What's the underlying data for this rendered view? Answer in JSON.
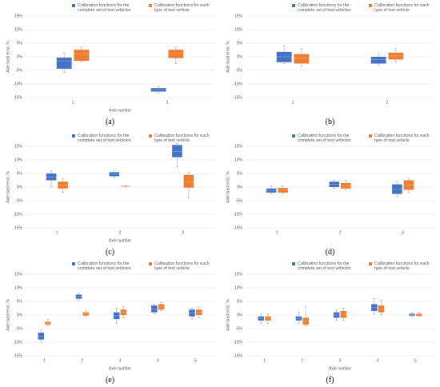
{
  "chart_data": [
    {
      "type": "box",
      "label": "(a)",
      "ylabel": "Axle load error, %",
      "xlabel": "Axle number",
      "categories": [
        "1",
        "2"
      ],
      "ylim": [
        -15,
        15
      ],
      "yticks": [
        {
          "value": -15,
          "label": "-15%"
        },
        {
          "value": -10,
          "label": "-10%"
        },
        {
          "value": -5,
          "label": "-5%"
        },
        {
          "value": 0,
          "label": "0%"
        },
        {
          "value": 5,
          "label": "5%"
        },
        {
          "value": 10,
          "label": "10%"
        },
        {
          "value": 15,
          "label": "15%"
        }
      ],
      "grid": true,
      "series": [
        {
          "name": "Calibration functions for the complete set of test vehicles",
          "color": "#4472c4",
          "min": [
            -5.8,
            -13.3
          ],
          "q1": [
            -4.4,
            -12.8
          ],
          "median": [
            -1.5,
            -12
          ],
          "q3": [
            -0.3,
            -11.5
          ],
          "max": [
            1.5,
            -11
          ]
        },
        {
          "name": "Calibration functions for each type of test vehicle",
          "color": "#ed7d31",
          "min": [
            -2,
            -2.5
          ],
          "q1": [
            -1.5,
            -0.5
          ],
          "median": [
            1,
            1
          ],
          "q3": [
            2.6,
            2.6
          ],
          "max": [
            3.5,
            3.5
          ]
        }
      ]
    },
    {
      "type": "box",
      "label": "(b)",
      "ylabel": "Axle load error, %",
      "categories": [
        "1",
        "2"
      ],
      "ylim": [
        -15,
        15
      ],
      "yticks": [
        {
          "value": -15,
          "label": "-15%"
        },
        {
          "value": -10,
          "label": "-10%"
        },
        {
          "value": -5,
          "label": "-5%"
        },
        {
          "value": 0,
          "label": "0%"
        },
        {
          "value": 5,
          "label": "5%"
        },
        {
          "value": 10,
          "label": "10%"
        },
        {
          "value": 15,
          "label": "15%"
        }
      ],
      "grid": true,
      "series": [
        {
          "name": "Calibration functions for the complete set of test vehicles",
          "color": "#4472c4",
          "min": [
            -2.5,
            -3
          ],
          "q1": [
            -2,
            -2.5
          ],
          "median": [
            0,
            -1
          ],
          "q3": [
            1.8,
            0
          ],
          "max": [
            4,
            1
          ]
        },
        {
          "name": "Calibration functions for each type of test vehicle",
          "color": "#ed7d31",
          "min": [
            -3.5,
            -2
          ],
          "q1": [
            -2.5,
            -1
          ],
          "median": [
            -0.5,
            0.3
          ],
          "q3": [
            1,
            1.5
          ],
          "max": [
            3,
            3
          ]
        }
      ]
    },
    {
      "type": "box",
      "label": "(c)",
      "ylabel": "Axle load error, %",
      "xlabel": "Axle number",
      "categories": [
        "1",
        "2",
        "3"
      ],
      "ylim": [
        -15,
        15
      ],
      "yticks": [
        {
          "value": -15,
          "label": "-15%"
        },
        {
          "value": -10,
          "label": "-10%"
        },
        {
          "value": -5,
          "label": "-5%"
        },
        {
          "value": 0,
          "label": "0%"
        },
        {
          "value": 5,
          "label": "5%"
        },
        {
          "value": 10,
          "label": "10%"
        },
        {
          "value": 15,
          "label": "15%"
        }
      ],
      "grid": true,
      "series": [
        {
          "name": "Calibration functions for the complete set of test vehicles",
          "color": "#4472c4",
          "min": [
            0,
            3.5,
            7.5
          ],
          "q1": [
            2.5,
            4,
            11
          ],
          "median": [
            3.8,
            4.8,
            13
          ],
          "q3": [
            5,
            5.5,
            15.5
          ],
          "max": [
            6,
            6,
            16
          ]
        },
        {
          "name": "Calibration functions for each type of test vehicle",
          "color": "#ed7d31",
          "min": [
            -2,
            0,
            -4
          ],
          "q1": [
            -0.5,
            0.2,
            -0.2
          ],
          "median": [
            0.8,
            0.3,
            2
          ],
          "q3": [
            2,
            0.5,
            4.5
          ],
          "max": [
            3,
            0.5,
            5.5
          ]
        }
      ]
    },
    {
      "type": "box",
      "label": "(d)",
      "ylabel": "Axle load error, %",
      "categories": [
        "1",
        "2",
        "3"
      ],
      "ylim": [
        -15,
        15
      ],
      "yticks": [
        {
          "value": -15,
          "label": "-15%"
        },
        {
          "value": -10,
          "label": "-10%"
        },
        {
          "value": -5,
          "label": "-5%"
        },
        {
          "value": 0,
          "label": "0%"
        },
        {
          "value": 5,
          "label": "5%"
        },
        {
          "value": 10,
          "label": "10%"
        },
        {
          "value": 15,
          "label": "15%"
        }
      ],
      "grid": true,
      "series": [
        {
          "name": "Calibration functions for the complete set of test vehicles",
          "color": "#4472c4",
          "min": [
            -2.5,
            -0.5,
            -3.5
          ],
          "q1": [
            -2,
            0,
            -2.5
          ],
          "median": [
            -1.2,
            1,
            -0.8
          ],
          "q3": [
            -0.5,
            2,
            1
          ],
          "max": [
            0.5,
            2.5,
            2
          ]
        },
        {
          "name": "Calibration functions for each type of test vehicle",
          "color": "#ed7d31",
          "min": [
            -2.5,
            -1,
            -2
          ],
          "q1": [
            -2,
            -0.5,
            -1
          ],
          "median": [
            -1.1,
            0.5,
            0.8
          ],
          "q3": [
            -0.3,
            1.5,
            2.5
          ],
          "max": [
            0.5,
            2.5,
            3
          ]
        }
      ]
    },
    {
      "type": "box",
      "label": "(e)",
      "ylabel": "Axle load error, %",
      "xlabel": "Axle number",
      "categories": [
        "1",
        "2",
        "3",
        "4",
        "5"
      ],
      "ylim": [
        -15,
        15
      ],
      "yticks": [
        {
          "value": -15,
          "label": "-15%"
        },
        {
          "value": -10,
          "label": "-10%"
        },
        {
          "value": -5,
          "label": "-5%"
        },
        {
          "value": 0,
          "label": "0%"
        },
        {
          "value": 5,
          "label": "5%"
        },
        {
          "value": 10,
          "label": "10%"
        },
        {
          "value": 15,
          "label": "15%"
        }
      ],
      "grid": true,
      "series": [
        {
          "name": "Calibration functions for the complete set of test vehicles",
          "color": "#4472c4",
          "min": [
            -10,
            5.5,
            -3,
            0.5,
            -1.5
          ],
          "q1": [
            -9,
            6,
            -1.5,
            1,
            -0.5
          ],
          "median": [
            -7.8,
            6.8,
            -0.3,
            2.3,
            0.8
          ],
          "q3": [
            -6.5,
            7.5,
            1,
            3.5,
            2
          ],
          "max": [
            -5.5,
            8,
            2.5,
            4,
            2.5
          ]
        },
        {
          "name": "Calibration functions for each type of test vehicle",
          "color": "#ed7d31",
          "min": [
            -4,
            -0.5,
            -1,
            1.5,
            -1
          ],
          "q1": [
            -3.5,
            -0.2,
            0,
            2,
            0
          ],
          "median": [
            -3,
            0.4,
            1,
            3,
            1
          ],
          "q3": [
            -2.5,
            1,
            2,
            4,
            2
          ],
          "max": [
            -1.5,
            1.5,
            3,
            4.5,
            3
          ]
        }
      ]
    },
    {
      "type": "box",
      "label": "(f)",
      "ylabel": "Axle load error, %",
      "xlabel": "Axle number",
      "categories": [
        "1",
        "2",
        "3",
        "4",
        "5"
      ],
      "ylim": [
        -15,
        15
      ],
      "yticks": [
        {
          "value": -15,
          "label": "-15%"
        },
        {
          "value": -10,
          "label": "-10%"
        },
        {
          "value": -5,
          "label": "-5%"
        },
        {
          "value": 0,
          "label": "0%"
        },
        {
          "value": 5,
          "label": "5%"
        },
        {
          "value": 10,
          "label": "10%"
        },
        {
          "value": 15,
          "label": "15%"
        }
      ],
      "grid": true,
      "series": [
        {
          "name": "Calibration functions for the complete set of test vehicles",
          "color": "#4472c4",
          "min": [
            -3,
            -3,
            -2,
            0.5,
            -0.5
          ],
          "q1": [
            -2,
            -2,
            -1,
            1.5,
            -0.2
          ],
          "median": [
            -1.2,
            -1.2,
            0,
            2.7,
            0.2
          ],
          "q3": [
            -0.5,
            -0.5,
            1,
            4,
            0.5
          ],
          "max": [
            0.5,
            1,
            2,
            6,
            1
          ]
        },
        {
          "name": "Calibration functions for each type of test vehicle",
          "color": "#ed7d31",
          "min": [
            -3,
            -4,
            -2,
            0,
            -0.5
          ],
          "q1": [
            -2,
            -3.5,
            -1,
            1,
            -0.3
          ],
          "median": [
            -1.2,
            -2.2,
            0.3,
            2.3,
            0.1
          ],
          "q3": [
            -0.5,
            -1,
            1.5,
            3.5,
            0.5
          ],
          "max": [
            0.5,
            3,
            2.5,
            5.5,
            1
          ]
        }
      ]
    }
  ]
}
